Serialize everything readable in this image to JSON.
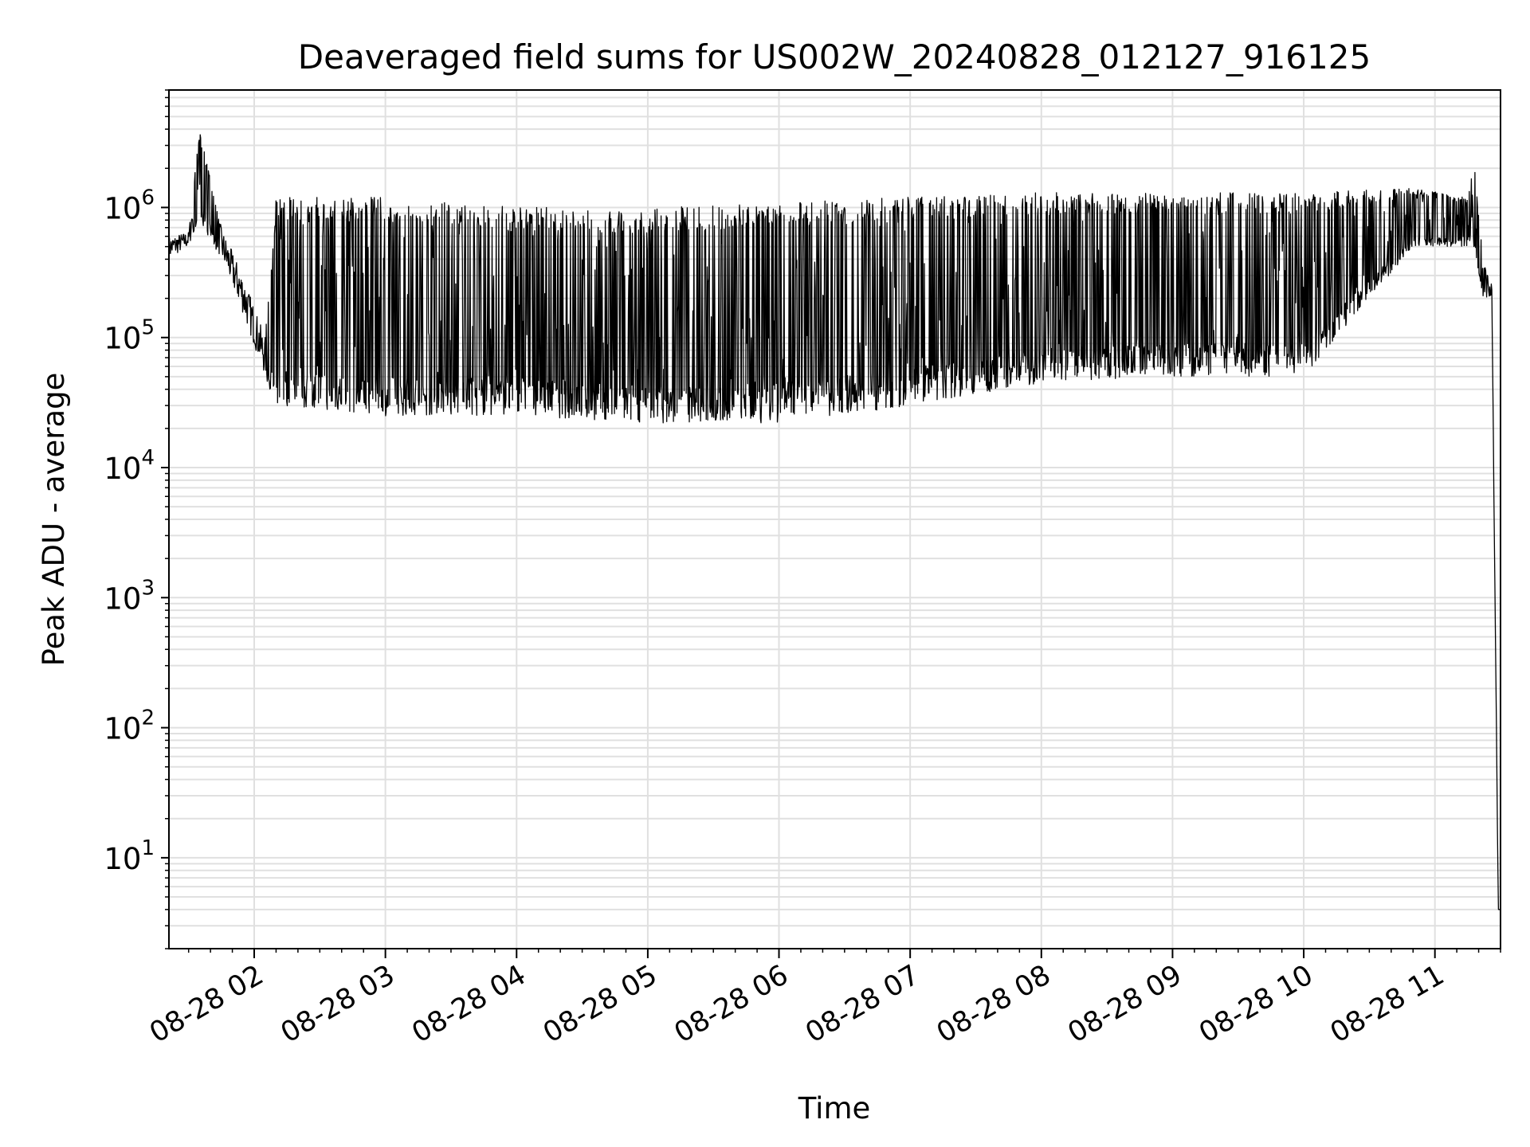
{
  "chart_data": {
    "type": "line",
    "title": "Deaveraged field sums for US002W_20240828_012127_916125",
    "xlabel": "Time",
    "ylabel": "Peak ADU - average",
    "yscale": "log",
    "ylim": [
      2,
      8000000
    ],
    "xlim": [
      "08-28 01:21",
      "08-28 11:30"
    ],
    "grid": true,
    "line_color": "#000000",
    "grid_color": "#e0e0e0",
    "x_ticks": [
      "08-28 02",
      "08-28 03",
      "08-28 04",
      "08-28 05",
      "08-28 06",
      "08-28 07",
      "08-28 08",
      "08-28 09",
      "08-28 10",
      "08-28 11"
    ],
    "y_ticks": [
      {
        "value": 10,
        "base": "10",
        "exp": "1"
      },
      {
        "value": 100,
        "base": "10",
        "exp": "2"
      },
      {
        "value": 1000,
        "base": "10",
        "exp": "3"
      },
      {
        "value": 10000,
        "base": "10",
        "exp": "4"
      },
      {
        "value": 100000,
        "base": "10",
        "exp": "5"
      },
      {
        "value": 1000000,
        "base": "10",
        "exp": "6"
      }
    ],
    "series": [
      {
        "style": "dense-oscillating",
        "envelope": [
          {
            "t": "08-28 01:21",
            "low": 400000,
            "high": 600000
          },
          {
            "t": "08-28 01:30",
            "low": 500000,
            "high": 650000
          },
          {
            "t": "08-28 01:35",
            "low": 800000,
            "high": 4000000
          },
          {
            "t": "08-28 01:45",
            "low": 400000,
            "high": 700000
          },
          {
            "t": "08-28 01:55",
            "low": 150000,
            "high": 300000
          },
          {
            "t": "08-28 02:05",
            "low": 50000,
            "high": 100000
          },
          {
            "t": "08-28 02:10",
            "low": 30000,
            "high": 1200000
          },
          {
            "t": "08-28 03:00",
            "low": 25000,
            "high": 1200000
          },
          {
            "t": "08-28 04:00",
            "low": 25000,
            "high": 1000000
          },
          {
            "t": "08-28 05:00",
            "low": 22000,
            "high": 1000000
          },
          {
            "t": "08-28 06:00",
            "low": 22000,
            "high": 1100000
          },
          {
            "t": "08-28 07:00",
            "low": 30000,
            "high": 1200000
          },
          {
            "t": "08-28 08:00",
            "low": 45000,
            "high": 1300000
          },
          {
            "t": "08-28 09:00",
            "low": 50000,
            "high": 1300000
          },
          {
            "t": "08-28 10:00",
            "low": 50000,
            "high": 1300000
          },
          {
            "t": "08-28 10:50",
            "low": 500000,
            "high": 1400000
          },
          {
            "t": "08-28 11:15",
            "low": 500000,
            "high": 1200000
          },
          {
            "t": "08-28 11:18",
            "low": 500000,
            "high": 2300000
          },
          {
            "t": "08-28 11:22",
            "low": 200000,
            "high": 400000
          },
          {
            "t": "08-28 11:26",
            "low": 200000,
            "high": 280000
          },
          {
            "t": "08-28 11:29",
            "low": 4,
            "high": 4
          },
          {
            "t": "08-28 11:30",
            "low": 4,
            "high": 4
          }
        ]
      }
    ]
  }
}
